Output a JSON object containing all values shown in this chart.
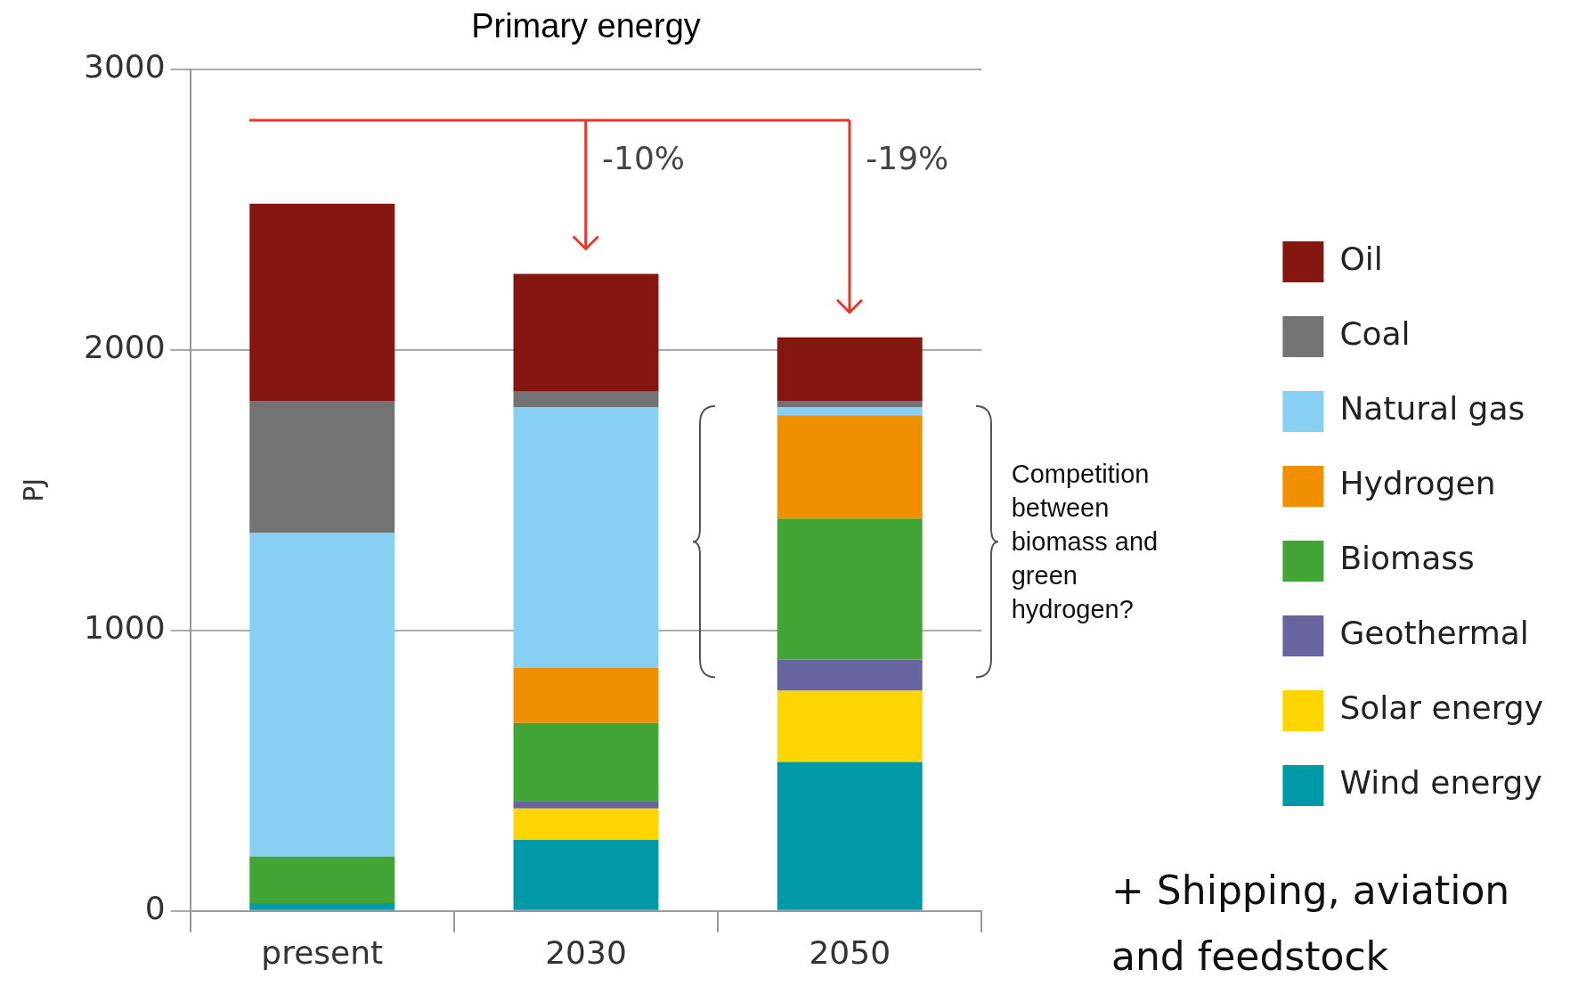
{
  "chart_data": {
    "type": "bar",
    "title": "Primary energy",
    "ylabel": "PJ",
    "categories": [
      "present",
      "2030",
      "2050"
    ],
    "stacked": true,
    "series": [
      {
        "name": "Wind energy",
        "color": "#0099a8",
        "values": [
          28,
          253,
          531
        ]
      },
      {
        "name": "Solar energy",
        "color": "#ffd500",
        "values": [
          0,
          112,
          254
        ]
      },
      {
        "name": "Geothermal",
        "color": "#6764a0",
        "values": [
          0,
          27,
          111
        ]
      },
      {
        "name": "Biomass",
        "color": "#40a535",
        "values": [
          166,
          278,
          503
        ]
      },
      {
        "name": "Hydrogen",
        "color": "#f09000",
        "values": [
          0,
          198,
          368
        ]
      },
      {
        "name": "Natural gas",
        "color": "#87cff3",
        "values": [
          1153,
          927,
          28
        ]
      },
      {
        "name": "Coal",
        "color": "#737373",
        "values": [
          472,
          56,
          24
        ]
      },
      {
        "name": "Oil",
        "color": "#85160f",
        "values": [
          702,
          420,
          226
        ]
      }
    ],
    "ylim": [
      0,
      3000
    ],
    "yticks": [
      0,
      1000,
      2000,
      3000
    ],
    "grid": "y",
    "legend": "right",
    "annotations": [
      "-10%",
      "-19%",
      "Competition between biomass and green hydrogen?",
      "+ Shipping, aviation and feedstock"
    ]
  }
}
